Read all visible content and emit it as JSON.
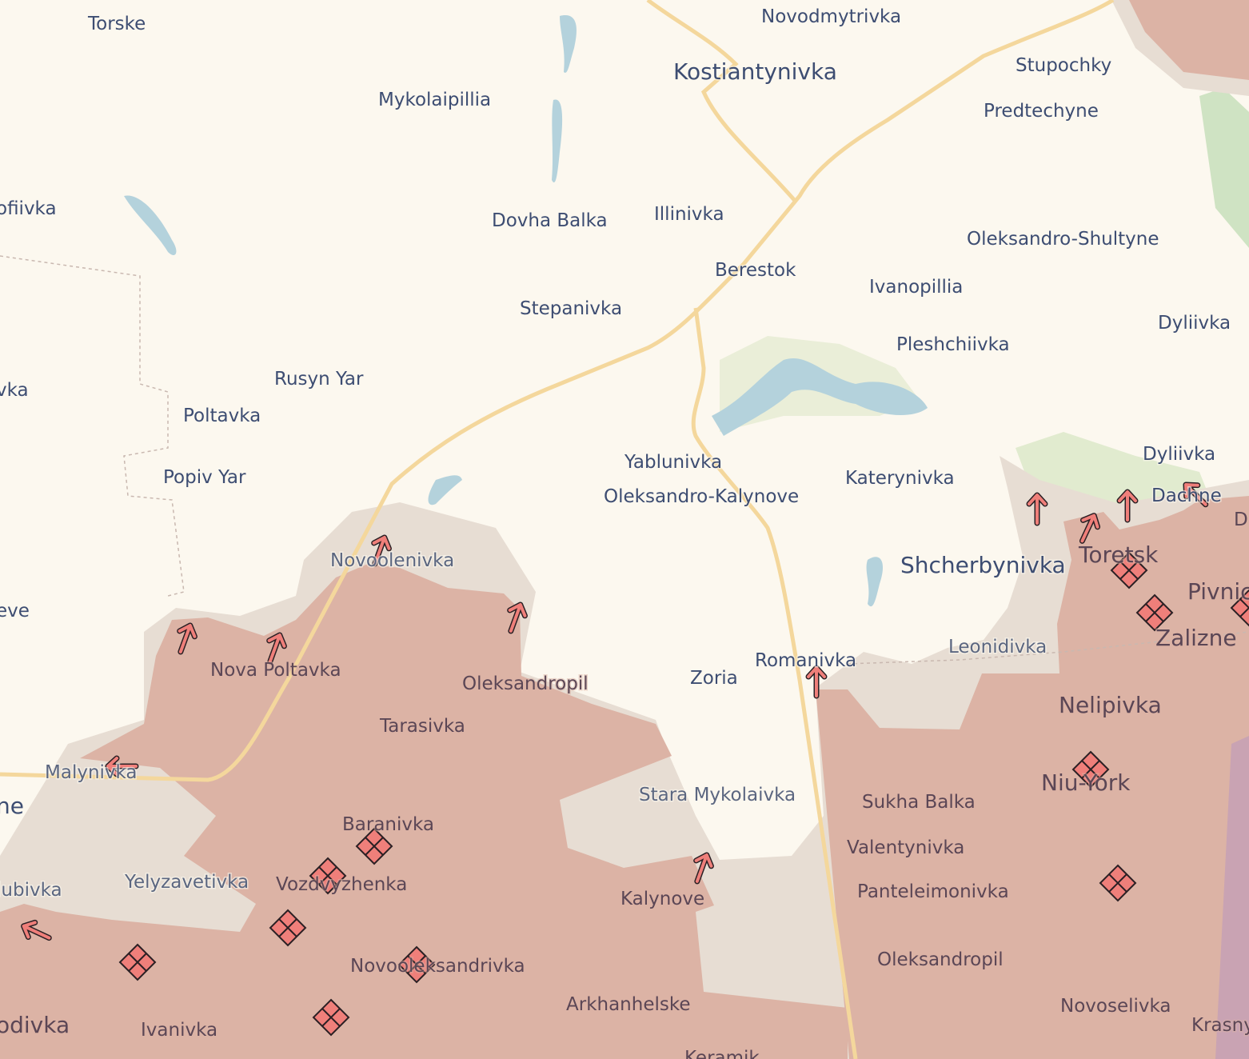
{
  "map": {
    "colors": {
      "background": "#fcf8ef",
      "occupied": "#dcb3a5",
      "contested": "#e7ddd3",
      "water": "#b4d2dc",
      "road": "#f4d79c",
      "vegetation": "#e1ebcf",
      "marker": "#ef7f7a"
    },
    "labels": [
      "Torske",
      "Novodmytrivka",
      "Kostiantynivka",
      "Stupochky",
      "Mykolaipillia",
      "Predtechyne",
      "ofiivka",
      "Dovha Balka",
      "Illinivka",
      "Oleksandro-Shultyne",
      "Berestok",
      "Ivanopillia",
      "Stepanivka",
      "Dyliivka",
      "Pleshchiivka",
      "vka",
      "Rusyn Yar",
      "Poltavka",
      "Yablunivka",
      "Dyliivka",
      "Katerynivka",
      "Oleksandro-Kalynove",
      "Dachne",
      "Popiv Yar",
      "D",
      "Toretsk",
      "Novoolenivka",
      "Shcherbynivka",
      "Pivnichne",
      "eve",
      "Zalizne",
      "Leonidivka",
      "Romanivka",
      "Nova Poltavka",
      "Oleksandropil",
      "Zoria",
      "Nelipivka",
      "Tarasivka",
      "Malynivka",
      "Niu-York",
      "ne",
      "Stara Mykolaivka",
      "Sukha Balka",
      "Baranivka",
      "Valentynivka",
      "iubivka",
      "Yelyzavetivka",
      "Vozdvyzhenka",
      "Panteleimonivka",
      "Kalynove",
      "Oleksandropil",
      "Novooleksandrivka",
      "Arkhanhelske",
      "Novoselivka",
      "odivka",
      "Ivanivka",
      "Krasnyi",
      "Keramik"
    ],
    "markers": {
      "advance_arrows": 12,
      "assault_markers": 11
    }
  }
}
